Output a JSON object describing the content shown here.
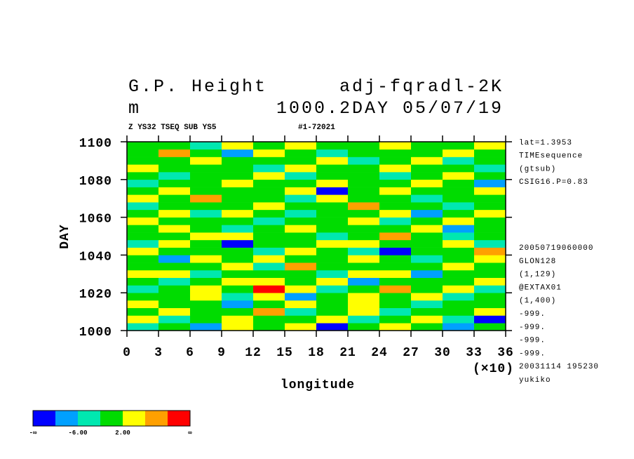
{
  "chart_data": {
    "type": "heatmap",
    "title": "G.P. Height",
    "title_right": "adj-fqradl-2K",
    "units": "m",
    "subtitle_right": "1000.2DAY 05/07/19",
    "info_left": "Z YS32 TSEQ SUB YS5",
    "info_right": "#1-72021",
    "xlabel": "longitude",
    "xscale_label": "(×10)",
    "ylabel": "DAY",
    "xlim": [
      0,
      36
    ],
    "ylim": [
      1000,
      1100
    ],
    "xticks": [
      0,
      3,
      6,
      9,
      12,
      15,
      18,
      21,
      24,
      27,
      30,
      33,
      36
    ],
    "yticks": [
      1000,
      1020,
      1040,
      1060,
      1080,
      1100
    ],
    "annotations_top": [
      "lat=1.3953",
      "TIMEsequence",
      "(gtsub)",
      "CSIG16.P=0.83"
    ],
    "annotations_bottom": [
      "20050719060000",
      "GLON128",
      "(1,129)",
      "@EXTAX01",
      "(1,400)",
      "-999.",
      "-999.",
      "-999.",
      "-999.",
      "20031114 195230",
      "yukiko"
    ],
    "colorbar": {
      "levels": [
        -10,
        -6,
        -2,
        2,
        6,
        10
      ],
      "colors": [
        "#0000ff",
        "#00a0ff",
        "#00e8b0",
        "#00dc00",
        "#ffff00",
        "#ffa000",
        "#ff0000"
      ],
      "ticks": [
        {
          "value": -6,
          "label": "-6.00"
        },
        {
          "value": 2,
          "label": "2.00"
        }
      ],
      "ends": [
        "-∞",
        "∞"
      ]
    },
    "x": [
      1.5,
      4.5,
      7.5,
      10.5,
      13.5,
      16.5,
      19.5,
      22.5,
      25.5,
      28.5,
      31.5,
      34.5
    ],
    "y": [
      1002,
      1006,
      1010,
      1014,
      1018,
      1022,
      1026,
      1030,
      1034,
      1038,
      1042,
      1046,
      1050,
      1054,
      1058,
      1062,
      1066,
      1070,
      1074,
      1078,
      1082,
      1086,
      1090,
      1094,
      1098
    ],
    "z": [
      [
        -3,
        1,
        -8,
        2,
        -1,
        4,
        -11,
        0,
        3,
        -2,
        -7,
        1
      ],
      [
        2,
        -4,
        0,
        5,
        -2,
        1,
        3,
        -6,
        0,
        2,
        -3,
        -12
      ],
      [
        -1,
        3,
        -2,
        0,
        7,
        -5,
        1,
        2,
        -4,
        0,
        1,
        3
      ],
      [
        4,
        -2,
        1,
        -9,
        0,
        3,
        -1,
        5,
        1,
        -3,
        0,
        -2
      ],
      [
        0,
        1,
        5,
        -3,
        2,
        -7,
        0,
        3,
        -1,
        4,
        -5,
        1
      ],
      [
        -5,
        0,
        2,
        1,
        11,
        2,
        -3,
        0,
        6,
        -1,
        2,
        -4
      ],
      [
        1,
        -3,
        -1,
        4,
        3,
        0,
        2,
        -8,
        0,
        1,
        -2,
        3
      ],
      [
        3,
        2,
        -6,
        0,
        -1,
        1,
        -4,
        2,
        3,
        -10,
        1,
        0
      ],
      [
        -2,
        0,
        1,
        3,
        -5,
        8,
        1,
        -1,
        -2,
        0,
        4,
        -1
      ],
      [
        0,
        -7,
        3,
        -1,
        2,
        0,
        -2,
        4,
        1,
        -3,
        0,
        2
      ],
      [
        2,
        1,
        -2,
        0,
        -4,
        3,
        0,
        -5,
        -11,
        1,
        -1,
        6
      ],
      [
        -4,
        3,
        0,
        -13,
        1,
        -1,
        5,
        2,
        0,
        -2,
        3,
        -6
      ],
      [
        1,
        0,
        4,
        2,
        -2,
        0,
        -3,
        1,
        7,
        0,
        -4,
        1
      ],
      [
        -1,
        5,
        -1,
        -3,
        0,
        2,
        1,
        -2,
        0,
        3,
        -9,
        0
      ],
      [
        3,
        -2,
        0,
        1,
        -6,
        1,
        -1,
        3,
        -3,
        0,
        2,
        -2
      ],
      [
        0,
        2,
        -3,
        5,
        1,
        -4,
        0,
        -1,
        2,
        -7,
        0,
        4
      ],
      [
        -6,
        0,
        1,
        -1,
        3,
        0,
        -2,
        6,
        -1,
        1,
        -3,
        0
      ],
      [
        2,
        -1,
        9,
        0,
        -2,
        -5,
        2,
        0,
        1,
        -4,
        1,
        -1
      ],
      [
        0,
        3,
        -2,
        -1,
        1,
        2,
        -12,
        -1,
        4,
        0,
        -2,
        2
      ],
      [
        -3,
        0,
        1,
        4,
        -1,
        0,
        3,
        -2,
        0,
        5,
        -1,
        -8
      ],
      [
        1,
        -5,
        0,
        -2,
        2,
        -3,
        0,
        1,
        -6,
        1,
        3,
        0
      ],
      [
        4,
        1,
        -1,
        0,
        -3,
        5,
        -1,
        0,
        2,
        -2,
        0,
        -3
      ],
      [
        0,
        -2,
        3,
        1,
        0,
        -1,
        2,
        -4,
        0,
        3,
        -5,
        1
      ],
      [
        -2,
        6,
        -1,
        -7,
        2,
        0,
        -3,
        1,
        -1,
        0,
        2,
        -1
      ],
      [
        1,
        0,
        -4,
        2,
        -1,
        3,
        0,
        -2,
        5,
        -1,
        0,
        2
      ]
    ]
  }
}
